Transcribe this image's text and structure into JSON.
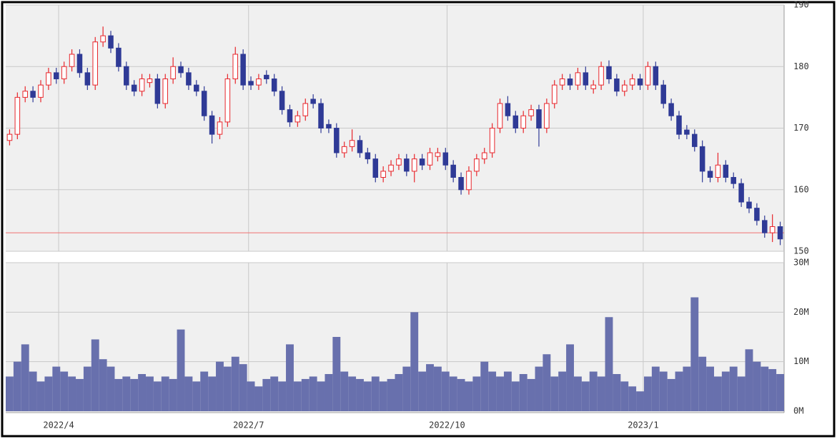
{
  "chart_data": {
    "type": "candlestick",
    "up_color": "#e8262b",
    "down_color": "#2f3a96",
    "volume_color": "#6870ad",
    "reference_line": 153,
    "reference_color": "#f07070",
    "grid": true,
    "xlim": [
      -0.5,
      99.5
    ],
    "xticks": [
      {
        "value": 6.3,
        "label": "2022/4"
      },
      {
        "value": 30.7,
        "label": "2022/7"
      },
      {
        "value": 56.2,
        "label": "2022/10"
      },
      {
        "value": 81.4,
        "label": "2023/1"
      }
    ],
    "ylim": [
      150,
      190
    ],
    "yticks": [
      150,
      160,
      170,
      180,
      190
    ],
    "volume_ylim": [
      0,
      30000000
    ],
    "volume_yticks": [
      {
        "value": 0,
        "label": "0M"
      },
      {
        "value": 10000000,
        "label": "10M"
      },
      {
        "value": 20000000,
        "label": "20M"
      },
      {
        "value": 30000000,
        "label": "30M"
      }
    ],
    "open": [
      168,
      169,
      175,
      176,
      175,
      177,
      179,
      178,
      180,
      182,
      179,
      177,
      184,
      185,
      183,
      180,
      177,
      176,
      177.4,
      178,
      174,
      178,
      180,
      179,
      177,
      176,
      172,
      169,
      171,
      178,
      182,
      177.6,
      177,
      178.6,
      178,
      176,
      173,
      171,
      172,
      174.7,
      174,
      170.6,
      170,
      166,
      167,
      168,
      166,
      165,
      162,
      163,
      164,
      165,
      163,
      165,
      164,
      165.4,
      166,
      164,
      162,
      160,
      163,
      165,
      166,
      170,
      174,
      172,
      170,
      172,
      173,
      170,
      174,
      177,
      178,
      177,
      179,
      176.4,
      177,
      180,
      178,
      176,
      177,
      178,
      177,
      180,
      177,
      174,
      172,
      169.7,
      169,
      167,
      163,
      162,
      164,
      162,
      161,
      158,
      157,
      155,
      153,
      154
    ],
    "high": [
      169.8,
      175.8,
      176.8,
      176.8,
      177.8,
      179.8,
      179.8,
      180.8,
      182.8,
      182.8,
      179.8,
      184.8,
      186.5,
      185.8,
      183.8,
      180.8,
      177.8,
      178.8,
      178.8,
      178.8,
      178.8,
      181.5,
      180.8,
      179.8,
      177.8,
      176.8,
      172.8,
      171.8,
      178.8,
      183.2,
      182.8,
      178.4,
      178.8,
      179.4,
      178.8,
      176.8,
      173.8,
      172.8,
      174.8,
      175.5,
      174.8,
      171.4,
      170.8,
      167.8,
      169.8,
      168.8,
      166.8,
      165.8,
      163.8,
      164.8,
      165.8,
      165.8,
      165.8,
      165.8,
      166.8,
      166.8,
      166.8,
      164.8,
      162.8,
      163.8,
      165.8,
      166.8,
      170.8,
      174.8,
      175.2,
      172.8,
      172.8,
      173.8,
      173.8,
      174.8,
      177.8,
      178.8,
      178.8,
      179.8,
      180,
      177.8,
      180.8,
      181,
      178.8,
      177.8,
      178.8,
      178.8,
      180.8,
      180.8,
      177.8,
      174.8,
      172.8,
      170.5,
      169.8,
      168,
      163.8,
      166,
      164.8,
      162.8,
      161.8,
      158.8,
      157.8,
      155.8,
      156,
      154.8
    ],
    "low": [
      167.2,
      168.2,
      174.2,
      174.2,
      174.2,
      176.2,
      177.2,
      177.2,
      179.2,
      178.2,
      176.2,
      176.2,
      183.2,
      182.2,
      179.2,
      176.2,
      175.2,
      175.2,
      176.6,
      173.2,
      173.2,
      177.2,
      178.2,
      176.2,
      175.2,
      171.2,
      167.5,
      168.2,
      170.2,
      177.2,
      176.2,
      176.2,
      176.2,
      177.2,
      175.2,
      172.2,
      170.2,
      170.2,
      171.2,
      173.2,
      169.2,
      169.2,
      165.2,
      165.2,
      166.2,
      165.2,
      164.2,
      161.2,
      161.2,
      162.2,
      163.2,
      162.2,
      161.2,
      163.2,
      163.2,
      164.6,
      163.2,
      161.2,
      159.2,
      159.2,
      162.2,
      164.2,
      165.2,
      169.2,
      171.2,
      169.2,
      169.2,
      171.2,
      167,
      169.2,
      173.2,
      176.2,
      176.2,
      176.2,
      176.2,
      175.6,
      176.2,
      177.2,
      175.2,
      175.2,
      176.2,
      176.2,
      176.2,
      176.2,
      173.2,
      171.2,
      168.2,
      168.2,
      166.2,
      161.2,
      161.2,
      161.2,
      161.2,
      160.2,
      157.2,
      156.2,
      154.2,
      152.2,
      151.5,
      151
    ],
    "close": [
      169,
      175,
      176,
      175,
      177,
      179,
      178,
      180,
      182,
      179,
      177,
      184,
      185,
      183,
      180,
      177,
      176,
      178,
      178,
      174,
      178,
      180,
      179,
      177,
      176,
      172,
      169,
      171,
      178,
      182,
      177,
      177,
      178,
      178,
      176,
      173,
      171,
      172,
      174,
      174,
      170,
      170,
      166,
      167,
      168,
      166,
      165,
      162,
      163,
      164,
      165,
      163,
      165,
      164,
      166,
      166,
      164,
      162,
      160,
      163,
      165,
      166,
      170,
      174,
      172,
      170,
      172,
      173,
      170,
      174,
      177,
      178,
      177,
      179,
      177,
      177,
      180,
      178,
      176,
      177,
      178,
      177,
      180,
      177,
      174,
      172,
      169,
      169,
      167,
      163,
      162,
      164,
      162,
      161,
      158,
      157,
      155,
      153,
      154,
      152
    ],
    "volume": [
      7000000,
      10000000,
      13500000,
      8000000,
      6000000,
      7000000,
      9000000,
      8000000,
      7000000,
      6500000,
      9000000,
      14500000,
      10500000,
      9000000,
      6500000,
      7000000,
      6500000,
      7500000,
      7000000,
      6000000,
      7000000,
      6500000,
      16500000,
      7000000,
      6000000,
      8000000,
      7000000,
      10000000,
      9000000,
      11000000,
      9500000,
      6000000,
      5000000,
      6500000,
      7000000,
      6000000,
      13500000,
      6000000,
      6500000,
      7000000,
      6000000,
      7500000,
      15000000,
      8000000,
      7000000,
      6500000,
      6000000,
      7000000,
      6000000,
      6500000,
      7500000,
      9000000,
      20000000,
      8000000,
      9500000,
      9000000,
      8000000,
      7000000,
      6500000,
      6000000,
      7000000,
      10000000,
      8000000,
      7000000,
      8000000,
      6000000,
      7500000,
      6500000,
      9000000,
      11500000,
      7000000,
      8000000,
      13500000,
      7000000,
      6000000,
      8000000,
      7000000,
      19000000,
      7500000,
      6000000,
      5000000,
      4000000,
      7000000,
      9000000,
      8000000,
      6500000,
      8000000,
      9000000,
      23000000,
      11000000,
      9000000,
      7000000,
      8000000,
      9000000,
      7000000,
      12500000,
      10000000,
      9000000,
      8500000,
      7500000
    ]
  }
}
